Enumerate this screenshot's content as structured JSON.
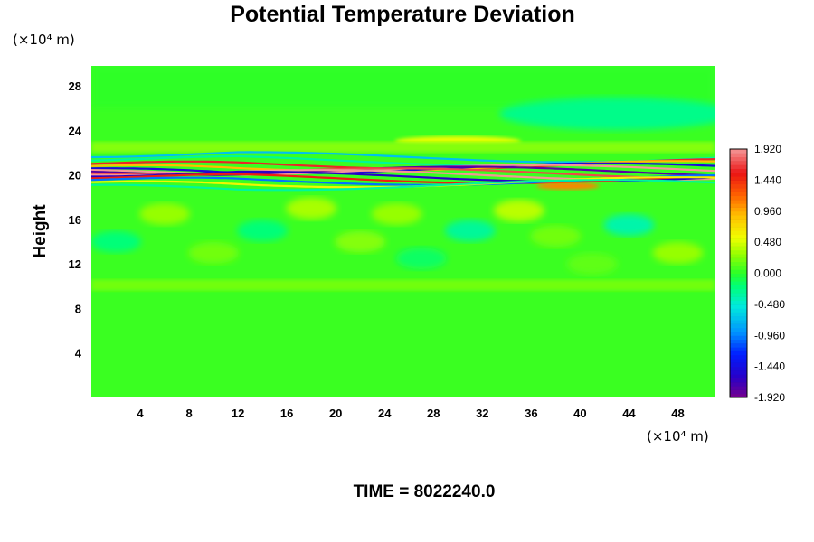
{
  "chart_data": {
    "type": "heatmap",
    "title": "Potential Temperature Deviation",
    "xlabel": "",
    "ylabel": "Height",
    "x_unit": "(×10⁴ m)",
    "y_unit": "(×10⁴ m)",
    "xlim": [
      0,
      51
    ],
    "ylim": [
      0,
      29.8
    ],
    "x_ticks": [
      4,
      8,
      12,
      16,
      20,
      24,
      28,
      32,
      36,
      40,
      44,
      48
    ],
    "y_ticks": [
      4,
      8,
      12,
      16,
      20,
      24,
      28
    ],
    "colorbar": {
      "min": -1.92,
      "max": 1.92,
      "tick_values": [
        1.92,
        1.44,
        0.96,
        0.48,
        0.0,
        -0.48,
        -0.96,
        -1.44,
        -1.92
      ],
      "tick_labels": [
        "1.920",
        "1.440",
        "0.960",
        "0.480",
        "0.000",
        "-0.480",
        "-0.960",
        "-1.440",
        "-1.920"
      ]
    },
    "field_description_bands": [
      {
        "y_from": 0,
        "y_to": 10,
        "value": 0.05
      },
      {
        "y_from": 10,
        "y_to": 18,
        "value": 0.1
      },
      {
        "y_from": 18,
        "y_to": 22,
        "value_range": [
          -1.92,
          1.92
        ]
      },
      {
        "y_from": 22,
        "y_to": 29.8,
        "value": 0.0
      }
    ],
    "footer": "TIME = 8022240.0"
  }
}
